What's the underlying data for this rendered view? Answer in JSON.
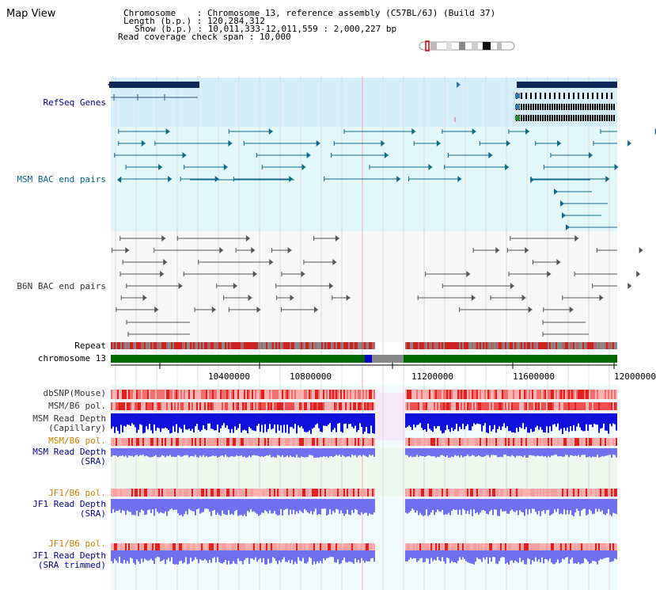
{
  "window": {
    "title": "Map View"
  },
  "info": {
    "chromosome_label": "Chromosome",
    "chromosome_value": "Chromosome 13, reference assembly (C57BL/6J) (Build 37)",
    "length_label": "Length (b.p.)",
    "length_value": "120,284,312",
    "show_label": "Show (b.p.)",
    "show_value": "10,011,333-12,011,559 : 2,000,227 bp",
    "coverage_label": "Read coverage check span",
    "coverage_value": "10,000"
  },
  "tracks": {
    "refseq": "RefSeq Genes",
    "msm_bac": "MSM BAC end pairs",
    "b6n_bac": "B6N BAC end pairs",
    "repeat": "Repeat",
    "chromosome": "chromosome 13",
    "dbsnp": "dbSNP(Mouse)",
    "msm_b6_pol_1": "MSM/B6 pol.",
    "msm_depth_cap_1": "MSM Read Depth",
    "msm_depth_cap_2": "(Capillary)",
    "msm_b6_pol_2": "MSM/B6 pol.",
    "msm_depth_sra_1": "MSM Read Depth",
    "msm_depth_sra_2": "(SRA)",
    "jf1_b6_pol_1": "JF1/B6 pol.",
    "jf1_depth_sra_1": "JF1 Read Depth",
    "jf1_depth_sra_2": "(SRA)",
    "jf1_b6_pol_2": "JF1/B6 pol.",
    "jf1_depth_trim_1": "JF1 Read Depth",
    "jf1_depth_trim_2": "(SRA trimmed)"
  },
  "axis": {
    "ticks": [
      "10400000",
      "10800000",
      "11200000",
      "11600000",
      "12000000"
    ]
  },
  "colors": {
    "refseq_bg": "#d6eef9",
    "bac_bg": "#e2f7f7",
    "gene_dark": "#0d2a5a",
    "chromosome_green": "#006600",
    "gap_gray": "#888888",
    "gap_blue": "#0000cc",
    "snp_red": "#ee3333",
    "depth_blue": "#1010dd",
    "depth_light": "#7070ee",
    "pol_orange": "#d08000"
  }
}
